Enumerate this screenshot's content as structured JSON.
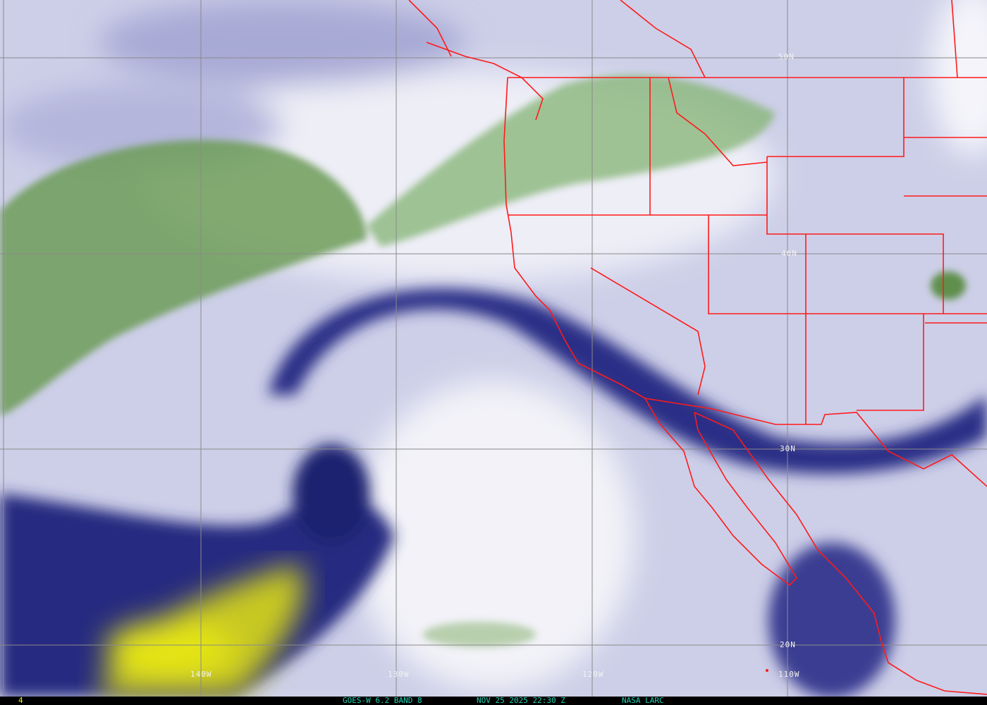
{
  "map": {
    "latitude_labels": [
      "50N",
      "40N",
      "30N",
      "20N"
    ],
    "longitude_labels": [
      "140W",
      "130W",
      "120W",
      "110W"
    ],
    "colors": {
      "dry_dark": "#1c1f78",
      "moist_light": "#e8e8f4",
      "green": "#3e7c2a",
      "yellow": "#d8d820",
      "borders": "#ff1a1a",
      "grid": "#8a8a8a"
    }
  },
  "footer": {
    "frame_number": "4",
    "product": "GOES-W 6.2 BAND 8",
    "timestamp": "NOV 25 2025 22:30 Z",
    "source": "NASA LARC",
    "text_color": "#20d0b0",
    "frame_color": "#f0f020"
  }
}
